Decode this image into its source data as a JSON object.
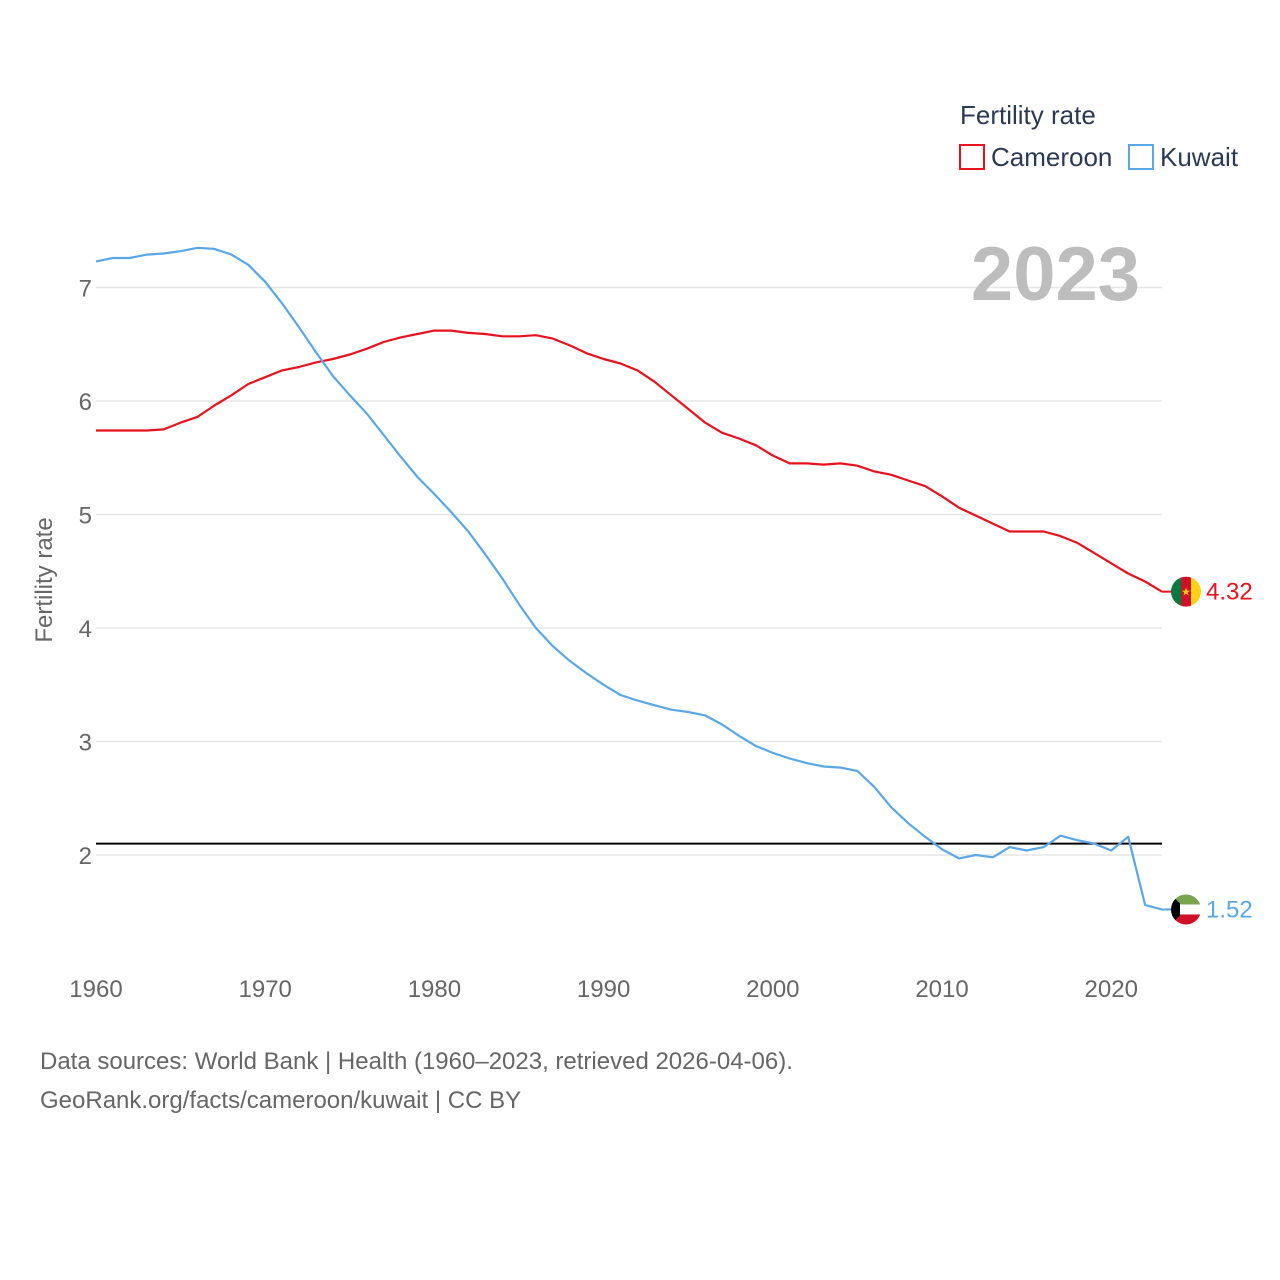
{
  "chart_data": {
    "type": "line",
    "title": "Fertility rate",
    "year_label": "2023",
    "ylabel": "Fertility rate",
    "xlabel": "",
    "xlim": [
      1960,
      2023
    ],
    "ylim": [
      1.2,
      7.6
    ],
    "x_ticks": [
      1960,
      1970,
      1980,
      1990,
      2000,
      2010,
      2020
    ],
    "y_ticks": [
      2,
      3,
      4,
      5,
      6,
      7
    ],
    "reference_line": 2.1,
    "grid": true,
    "legend_position": "top-right",
    "x": [
      1960,
      1961,
      1962,
      1963,
      1964,
      1965,
      1966,
      1967,
      1968,
      1969,
      1970,
      1971,
      1972,
      1973,
      1974,
      1975,
      1976,
      1977,
      1978,
      1979,
      1980,
      1981,
      1982,
      1983,
      1984,
      1985,
      1986,
      1987,
      1988,
      1989,
      1990,
      1991,
      1992,
      1993,
      1994,
      1995,
      1996,
      1997,
      1998,
      1999,
      2000,
      2001,
      2002,
      2003,
      2004,
      2005,
      2006,
      2007,
      2008,
      2009,
      2010,
      2011,
      2012,
      2013,
      2014,
      2015,
      2016,
      2017,
      2018,
      2019,
      2020,
      2021,
      2022,
      2023
    ],
    "series": [
      {
        "name": "Cameroon",
        "color": "#e8121f",
        "end_value": "4.32",
        "flag": "cameroon-flag-icon",
        "values": [
          5.74,
          5.74,
          5.74,
          5.74,
          5.75,
          5.81,
          5.86,
          5.96,
          6.05,
          6.15,
          6.21,
          6.27,
          6.3,
          6.34,
          6.37,
          6.41,
          6.46,
          6.52,
          6.56,
          6.59,
          6.62,
          6.62,
          6.6,
          6.59,
          6.57,
          6.57,
          6.58,
          6.55,
          6.49,
          6.42,
          6.37,
          6.33,
          6.27,
          6.17,
          6.05,
          5.93,
          5.81,
          5.72,
          5.67,
          5.61,
          5.52,
          5.45,
          5.45,
          5.44,
          5.45,
          5.43,
          5.38,
          5.35,
          5.3,
          5.25,
          5.16,
          5.06,
          4.99,
          4.92,
          4.85,
          4.85,
          4.85,
          4.81,
          4.75,
          4.66,
          4.57,
          4.48,
          4.41,
          4.32
        ]
      },
      {
        "name": "Kuwait",
        "color": "#5aa7e8",
        "end_value": "1.52",
        "flag": "kuwait-flag-icon",
        "values": [
          7.23,
          7.26,
          7.26,
          7.29,
          7.3,
          7.32,
          7.35,
          7.34,
          7.29,
          7.2,
          7.05,
          6.86,
          6.65,
          6.43,
          6.22,
          6.05,
          5.89,
          5.7,
          5.51,
          5.33,
          5.18,
          5.02,
          4.85,
          4.65,
          4.44,
          4.21,
          4.0,
          3.84,
          3.71,
          3.6,
          3.5,
          3.41,
          3.36,
          3.32,
          3.28,
          3.26,
          3.23,
          3.15,
          3.05,
          2.96,
          2.9,
          2.85,
          2.81,
          2.78,
          2.77,
          2.74,
          2.6,
          2.42,
          2.28,
          2.16,
          2.05,
          1.97,
          2.0,
          1.98,
          2.07,
          2.04,
          2.07,
          2.17,
          2.13,
          2.1,
          2.04,
          2.16,
          1.56,
          1.52
        ]
      }
    ]
  },
  "footer": {
    "line1": "Data sources: World Bank | Health (1960–2023, retrieved 2026-04-06).",
    "line2": "GeoRank.org/facts/cameroon/kuwait | CC BY"
  }
}
